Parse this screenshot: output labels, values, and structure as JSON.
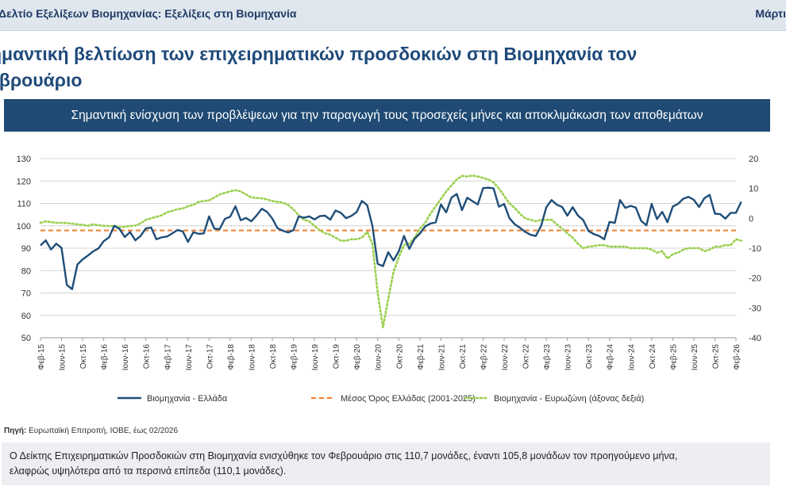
{
  "header": {
    "left_text": "Δελτίο Εξελίξεων Βιομηχανίας: Εξελίξεις στη Βιομηχανία",
    "right_text": "Μάρτι"
  },
  "headline": {
    "line1": "ημαντική βελτίωση των επιχειρηματικών προσδοκιών στη Βιομηχανία τον",
    "line2": "εβρουάριο"
  },
  "banner": "Σημαντική ενίσχυση των προβλέψεων για την παραγωγή τους προσεχείς μήνες και αποκλιμάκωση των αποθεμάτων",
  "chart_data": {
    "type": "line",
    "x_tick_labels": [
      "Φεβ-15",
      "Ιουν-15",
      "Οκτ-15",
      "Φεβ-16",
      "Ιουν-16",
      "Οκτ-16",
      "Φεβ-17",
      "Ιουν-17",
      "Οκτ-17",
      "Φεβ-18",
      "Ιουν-18",
      "Οκτ-18",
      "Φεβ-19",
      "Ιουν-19",
      "Οκτ-19",
      "Φεβ-20",
      "Ιουν-20",
      "Οκτ-20",
      "Φεβ-21",
      "Ιουν-21",
      "Οκτ-21",
      "Φεβ-22",
      "Ιουν-22",
      "Οκτ-22",
      "Φεβ-23",
      "Ιουν-23",
      "Οκτ-23",
      "Φεβ-24",
      "Ιουν-24",
      "Οκτ-24",
      "Φεβ-25",
      "Ιουν-25",
      "Οκτ-25",
      "Φεβ-26"
    ],
    "y_left": {
      "min": 50,
      "max": 130,
      "step": 10
    },
    "y_right": {
      "min": -40,
      "max": 20,
      "step": 10
    },
    "series": [
      {
        "name": "Βιομηχανία  - Ελλάδα",
        "axis": "left",
        "color": "#1f4e79",
        "style": "solid",
        "values": [
          91.2,
          93.5,
          89.4,
          92.0,
          90.1,
          73.6,
          71.7,
          82.7,
          85.0,
          86.7,
          88.6,
          89.9,
          93.1,
          94.8,
          100.0,
          98.6,
          95.0,
          97.2,
          93.5,
          95.5,
          98.8,
          99.2,
          94.0,
          94.8,
          95.2,
          96.6,
          98.1,
          97.5,
          92.8,
          97.1,
          96.4,
          96.6,
          104.2,
          98.7,
          98.5,
          103.1,
          104.0,
          108.7,
          102.5,
          103.5,
          102.0,
          104.6,
          107.6,
          106.2,
          103.2,
          98.9,
          97.8,
          97.0,
          98.0,
          104.2,
          103.6,
          104.2,
          102.8,
          104.3,
          104.5,
          102.7,
          106.8,
          105.8,
          103.4,
          104.4,
          106.1,
          111.1,
          109.2,
          99.9,
          83.0,
          82.0,
          88.2,
          84.5,
          88.6,
          95.5,
          89.7,
          94.2,
          96.5,
          99.7,
          101.0,
          101.5,
          109.5,
          106.0,
          112.5,
          114.2,
          107.0,
          112.5,
          111.0,
          109.5,
          116.8,
          117.0,
          116.7,
          108.5,
          109.7,
          103.4,
          100.7,
          99.1,
          97.3,
          96.0,
          95.4,
          99.9,
          108.3,
          111.5,
          109.4,
          108.4,
          104.5,
          108.3,
          104.6,
          102.6,
          97.7,
          96.3,
          95.5,
          94.0,
          101.7,
          101.3,
          111.5,
          108.0,
          108.9,
          108.1,
          102.2,
          100.2,
          109.8,
          103.0,
          106.2,
          101.6,
          108.6,
          109.8,
          112.1,
          112.9,
          111.6,
          108.4,
          112.3,
          113.8,
          105.4,
          105.2,
          103.2,
          105.8,
          105.8,
          110.7
        ]
      },
      {
        "name": "Μέσος Όρος Ελλάδας (2001-2025)",
        "axis": "left",
        "color": "#f07f2e",
        "style": "dashed",
        "value": 97.9
      },
      {
        "name": "Βιομηχανία - Ευρωζώνη (άξονας δεξιά)",
        "axis": "right",
        "color": "#9bcf4e",
        "style": "dotted",
        "values": [
          -1.5,
          -1.0,
          -1.3,
          -1.5,
          -1.5,
          -1.6,
          -1.8,
          -2.0,
          -2.2,
          -2.5,
          -2.0,
          -2.3,
          -2.5,
          -2.6,
          -2.6,
          -3.0,
          -2.8,
          -2.6,
          -2.4,
          -1.7,
          -0.5,
          0.0,
          0.5,
          1.0,
          2.0,
          2.5,
          3.0,
          3.3,
          4.0,
          4.5,
          5.5,
          5.8,
          6.0,
          7.0,
          8.0,
          8.5,
          9.0,
          9.4,
          9.0,
          8.0,
          7.0,
          6.8,
          6.7,
          6.3,
          5.8,
          5.5,
          5.2,
          4.5,
          3.0,
          1.0,
          -0.5,
          -1.0,
          -2.5,
          -4.0,
          -5.0,
          -5.5,
          -6.5,
          -7.5,
          -7.5,
          -7.0,
          -7.0,
          -6.5,
          -4.5,
          -8.5,
          -25.0,
          -36.5,
          -27.0,
          -18.0,
          -13.0,
          -9.0,
          -8.5,
          -6.5,
          -3.5,
          -1.5,
          1.5,
          4.0,
          6.5,
          9.0,
          11.0,
          13.0,
          14.2,
          14.0,
          14.3,
          14.0,
          13.5,
          13.0,
          12.0,
          10.0,
          7.5,
          5.0,
          3.5,
          1.5,
          0.0,
          -0.5,
          -1.0,
          -0.5,
          -0.5,
          -0.5,
          -2.0,
          -3.5,
          -5.0,
          -6.5,
          -8.5,
          -10.0,
          -9.5,
          -9.3,
          -9.0,
          -9.0,
          -9.5,
          -9.5,
          -9.5,
          -9.5,
          -10.0,
          -10.0,
          -10.0,
          -10.0,
          -10.5,
          -11.5,
          -11.0,
          -13.5,
          -12.0,
          -11.5,
          -10.5,
          -10.0,
          -10.0,
          -10.0,
          -11.0,
          -10.5,
          -9.5,
          -9.5,
          -9.0,
          -9.0,
          -7.0,
          -7.5
        ]
      }
    ]
  },
  "source": {
    "label": "Πηγή:",
    "text": "Ευρωπαϊκή Επιτροπή, ΙΟΒΕ, έως 02/2026"
  },
  "note": {
    "line1": "Ο Δείκτης Επιχειρηματικών Προσδοκιών στη Βιομηχανία ενισχύθηκε τον Φεβρουάριο στις 110,7 μονάδες, έναντι 105,8 μονάδων τον προηγούμενο μήνα,",
    "line2": "ελαφρώς υψηλότερα από τα περσινά επίπεδα (110,1 μονάδες)."
  }
}
